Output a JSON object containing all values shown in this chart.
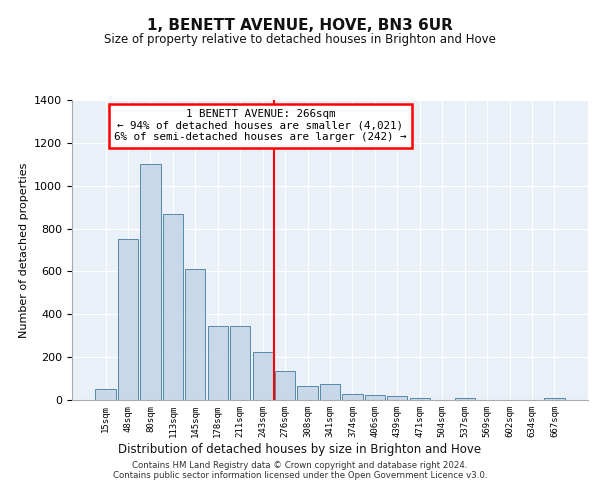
{
  "title": "1, BENETT AVENUE, HOVE, BN3 6UR",
  "subtitle": "Size of property relative to detached houses in Brighton and Hove",
  "xlabel": "Distribution of detached houses by size in Brighton and Hove",
  "ylabel": "Number of detached properties",
  "categories": [
    "15sqm",
    "48sqm",
    "80sqm",
    "113sqm",
    "145sqm",
    "178sqm",
    "211sqm",
    "243sqm",
    "276sqm",
    "308sqm",
    "341sqm",
    "374sqm",
    "406sqm",
    "439sqm",
    "471sqm",
    "504sqm",
    "537sqm",
    "569sqm",
    "602sqm",
    "634sqm",
    "667sqm"
  ],
  "values": [
    50,
    750,
    1100,
    870,
    610,
    345,
    345,
    225,
    135,
    65,
    75,
    30,
    25,
    18,
    10,
    0,
    10,
    0,
    0,
    0,
    10
  ],
  "bar_color": "#c8d8e8",
  "bar_edge_color": "#5588aa",
  "vline_x_index": 8,
  "vline_color": "red",
  "annotation_text": "1 BENETT AVENUE: 266sqm\n← 94% of detached houses are smaller (4,021)\n6% of semi-detached houses are larger (242) →",
  "annotation_box_color": "white",
  "annotation_box_edge_color": "red",
  "ylim": [
    0,
    1400
  ],
  "yticks": [
    0,
    200,
    400,
    600,
    800,
    1000,
    1200,
    1400
  ],
  "background_color": "#eaf0f8",
  "footer_line1": "Contains HM Land Registry data © Crown copyright and database right 2024.",
  "footer_line2": "Contains public sector information licensed under the Open Government Licence v3.0."
}
